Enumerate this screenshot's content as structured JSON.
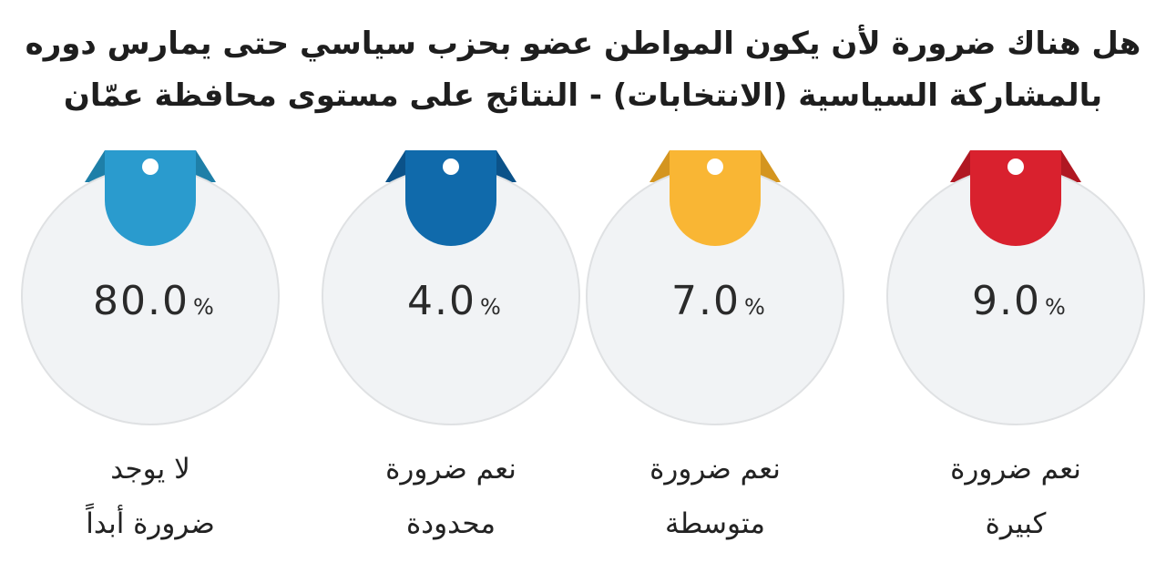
{
  "title": {
    "line1": "هل هناك ضرورة لأن يكون المواطن عضو بحزب سياسي حتى يمارس دوره",
    "line2": "بالمشاركة السياسية (الانتخابات)  - النتائج على مستوى محافظة عمّان"
  },
  "chart_data": {
    "type": "table",
    "title": "هل هناك ضرورة لأن يكون المواطن عضو بحزب سياسي حتى يمارس دوره بالمشاركة السياسية (الانتخابات)  - النتائج على مستوى محافظة عمّان",
    "unit": "%",
    "items": [
      {
        "line1": "لا يوجد",
        "line2": "ضرورة أبداً",
        "value": 80.0,
        "display": "80.0",
        "color": "#2a9bce",
        "fold": "#1e7fa8"
      },
      {
        "line1": "نعم ضرورة",
        "line2": "محدودة",
        "value": 4.0,
        "display": "4.0",
        "color": "#106aab",
        "fold": "#0b5289"
      },
      {
        "line1": "نعم ضرورة",
        "line2": "متوسطة",
        "value": 7.0,
        "display": "7.0",
        "color": "#f9b634",
        "fold": "#d4951f"
      },
      {
        "line1": "نعم ضرورة",
        "line2": "كبيرة",
        "value": 9.0,
        "display": "9.0",
        "color": "#d9212e",
        "fold": "#b01822"
      }
    ]
  }
}
